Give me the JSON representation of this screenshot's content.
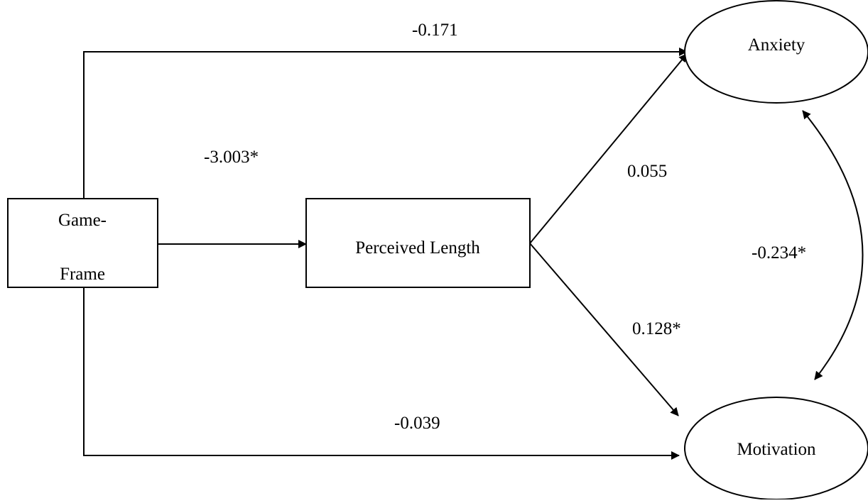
{
  "nodes": {
    "game_frame": {
      "line1": "Game-",
      "line2": "Frame"
    },
    "perceived_length": {
      "label": "Perceived Length"
    },
    "anxiety": {
      "label": "Anxiety"
    },
    "motivation": {
      "label": "Motivation"
    }
  },
  "paths": {
    "frame_to_anxiety": "-0.171",
    "frame_to_length": "-3.003*",
    "length_to_anxiety": "0.055",
    "anxiety_motivation_covariance": "-0.234*",
    "length_to_motivation": "0.128*",
    "frame_to_motivation": "-0.039"
  }
}
